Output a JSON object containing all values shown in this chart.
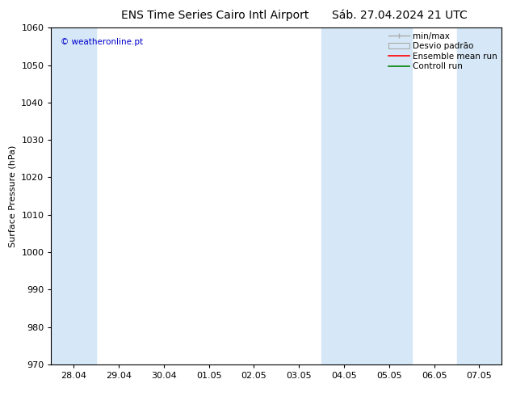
{
  "title": "ENS Time Series Cairo Intl Airport",
  "subtitle": "Sáb. 27.04.2024 21 UTC",
  "ylabel": "Surface Pressure (hPa)",
  "ylim": [
    970,
    1060
  ],
  "yticks": [
    970,
    980,
    990,
    1000,
    1010,
    1020,
    1030,
    1040,
    1050,
    1060
  ],
  "x_labels": [
    "28.04",
    "29.04",
    "30.04",
    "01.05",
    "02.05",
    "03.05",
    "04.05",
    "05.05",
    "06.05",
    "07.05"
  ],
  "x_positions": [
    0,
    1,
    2,
    3,
    4,
    5,
    6,
    7,
    8,
    9
  ],
  "shaded_cols": [
    0,
    6,
    7,
    9
  ],
  "bg_color": "#ffffff",
  "plot_bg_color": "#ffffff",
  "shaded_color": "#d6e8f7",
  "mean_line_color": "#ff0000",
  "control_line_color": "#008000",
  "watermark_text": "© weatheronline.pt",
  "watermark_color": "#0000cc",
  "title_fontsize": 10,
  "axis_fontsize": 8,
  "tick_fontsize": 8,
  "legend_fontsize": 7.5
}
